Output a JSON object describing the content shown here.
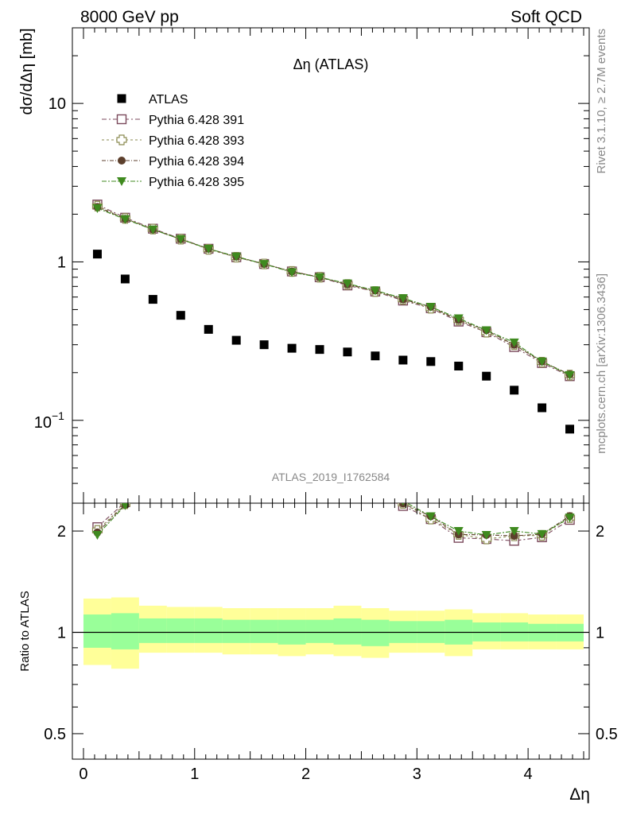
{
  "header": {
    "left": "8000 GeV pp",
    "right": "Soft QCD"
  },
  "side_text": {
    "rivet": "Rivet 3.1.10, ≥ 2.7M events",
    "mcplots": "mcplots.cern.ch [arXiv:1306.3436]"
  },
  "chart_data": {
    "type": "scatter",
    "title": "Δη (ATLAS)",
    "watermark": "ATLAS_2019_I1762584",
    "xlabel": "Δη",
    "ylabel_top": "dσ/dΔη [mb]",
    "ylabel_ratio": "Ratio to ATLAS",
    "xlim": [
      -0.1,
      4.55
    ],
    "ylim_top": [
      0.03,
      30
    ],
    "ylim_ratio": [
      0.42,
      2.42
    ],
    "top_log_scale": true,
    "ratio_log_scale": true,
    "x_ticks": [
      "0",
      "1",
      "2",
      "3",
      "4"
    ],
    "y_ticks_top": [
      "10",
      "1"
    ],
    "y_ticks_ratio": [
      "2",
      "1",
      "0.5"
    ],
    "y_tick_top_exp": {
      "base": "10",
      "exp": "−1"
    },
    "legend_position": "top-left",
    "x": [
      0.125,
      0.375,
      0.625,
      0.875,
      1.125,
      1.375,
      1.625,
      1.875,
      2.125,
      2.375,
      2.625,
      2.875,
      3.125,
      3.375,
      3.625,
      3.875,
      4.125,
      4.375
    ],
    "data": {
      "name": "ATLAS",
      "values": [
        1.12,
        0.78,
        0.58,
        0.46,
        0.375,
        0.32,
        0.3,
        0.285,
        0.28,
        0.27,
        0.255,
        0.24,
        0.235,
        0.22,
        0.19,
        0.155,
        0.12,
        0.088
      ]
    },
    "band_edges": [
      0.0,
      0.25,
      0.5,
      0.75,
      1.0,
      1.25,
      1.5,
      1.75,
      2.0,
      2.25,
      2.5,
      2.75,
      3.0,
      3.25,
      3.5,
      3.75,
      4.0,
      4.25,
      4.5
    ],
    "band_inner": [
      [
        0.9,
        1.13
      ],
      [
        0.89,
        1.14
      ],
      [
        0.93,
        1.1
      ],
      [
        0.93,
        1.1
      ],
      [
        0.93,
        1.1
      ],
      [
        0.93,
        1.09
      ],
      [
        0.93,
        1.09
      ],
      [
        0.92,
        1.09
      ],
      [
        0.93,
        1.09
      ],
      [
        0.92,
        1.1
      ],
      [
        0.91,
        1.09
      ],
      [
        0.93,
        1.08
      ],
      [
        0.93,
        1.08
      ],
      [
        0.92,
        1.09
      ],
      [
        0.94,
        1.07
      ],
      [
        0.94,
        1.07
      ],
      [
        0.94,
        1.06
      ],
      [
        0.94,
        1.06
      ]
    ],
    "band_outer": [
      [
        0.8,
        1.26
      ],
      [
        0.78,
        1.27
      ],
      [
        0.87,
        1.2
      ],
      [
        0.87,
        1.19
      ],
      [
        0.87,
        1.19
      ],
      [
        0.86,
        1.18
      ],
      [
        0.86,
        1.18
      ],
      [
        0.85,
        1.18
      ],
      [
        0.86,
        1.18
      ],
      [
        0.85,
        1.2
      ],
      [
        0.84,
        1.18
      ],
      [
        0.87,
        1.16
      ],
      [
        0.87,
        1.16
      ],
      [
        0.85,
        1.17
      ],
      [
        0.89,
        1.14
      ],
      [
        0.89,
        1.14
      ],
      [
        0.89,
        1.13
      ],
      [
        0.89,
        1.13
      ]
    ],
    "series": [
      {
        "name": "Pythia 6.428 391",
        "color": "#7b4a5c",
        "marker": "open-square",
        "dash": "6,3,2,3",
        "values": [
          2.3,
          1.9,
          1.62,
          1.4,
          1.21,
          1.07,
          0.97,
          0.87,
          0.8,
          0.71,
          0.65,
          0.57,
          0.51,
          0.42,
          0.36,
          0.29,
          0.23,
          0.19
        ]
      },
      {
        "name": "Pythia 6.428 393",
        "color": "#8a8a50",
        "marker": "open-cross",
        "dash": "3,3",
        "values": [
          2.25,
          1.88,
          1.61,
          1.39,
          1.2,
          1.07,
          0.97,
          0.87,
          0.8,
          0.72,
          0.65,
          0.58,
          0.51,
          0.43,
          0.36,
          0.3,
          0.233,
          0.193
        ]
      },
      {
        "name": "Pythia 6.428 394",
        "color": "#5c3f2c",
        "marker": "filled-circle",
        "dash": "5,2,1,2",
        "values": [
          2.22,
          1.87,
          1.6,
          1.39,
          1.21,
          1.08,
          0.97,
          0.87,
          0.8,
          0.72,
          0.66,
          0.58,
          0.52,
          0.43,
          0.37,
          0.3,
          0.235,
          0.195
        ]
      },
      {
        "name": "Pythia 6.428 395",
        "color": "#3f8a1f",
        "marker": "filled-triangle-down",
        "dash": "6,2,2,2",
        "values": [
          2.18,
          1.86,
          1.6,
          1.39,
          1.21,
          1.08,
          0.97,
          0.86,
          0.8,
          0.73,
          0.66,
          0.59,
          0.52,
          0.44,
          0.37,
          0.31,
          0.235,
          0.193
        ]
      }
    ]
  }
}
